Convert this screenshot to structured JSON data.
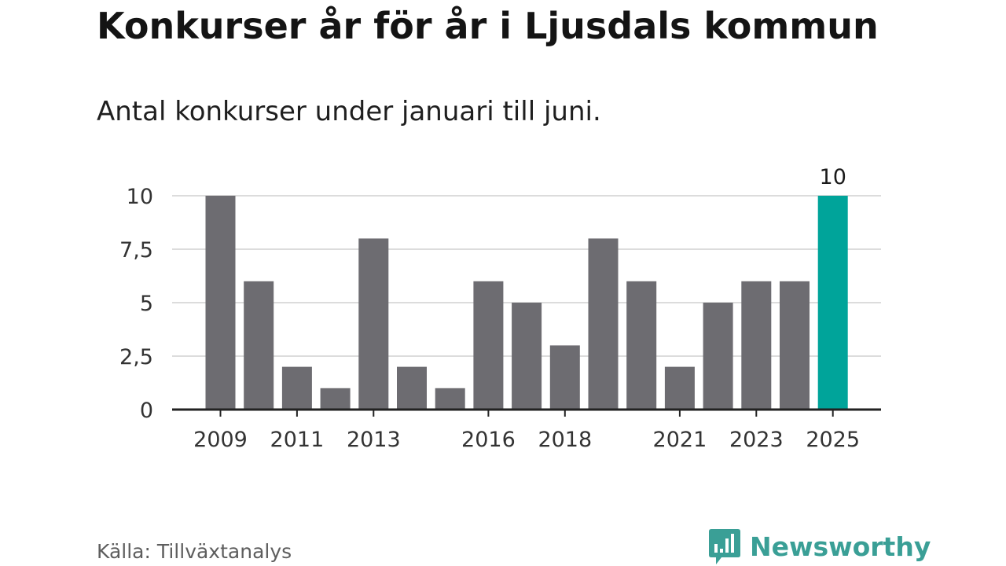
{
  "title": "Konkurser år för år i Ljusdals kommun",
  "subtitle": "Antal konkurser under januari till juni.",
  "source": "Källa: Tillväxtanalys",
  "brand": "Newsworthy",
  "colors": {
    "bar": "#6d6c71",
    "highlight": "#00a49a",
    "grid": "#dcdcdc",
    "axis": "#222222",
    "brand": "#3a9f96"
  },
  "chart_data": {
    "type": "bar",
    "categories": [
      "2009",
      "2010",
      "2011",
      "2012",
      "2013",
      "2014",
      "2015",
      "2016",
      "2017",
      "2018",
      "2019",
      "2020",
      "2021",
      "2022",
      "2023",
      "2024",
      "2025"
    ],
    "values": [
      10,
      6,
      2,
      1,
      8,
      2,
      1,
      6,
      5,
      3,
      8,
      6,
      2,
      5,
      6,
      6,
      10
    ],
    "x_tick_labels": [
      "2009",
      "2011",
      "2013",
      "2016",
      "2018",
      "2021",
      "2023",
      "2025"
    ],
    "y_ticks": [
      0,
      2.5,
      5,
      7.5,
      10
    ],
    "y_tick_labels": [
      "0",
      "2,5",
      "5",
      "7,5",
      "10"
    ],
    "ylim": [
      0,
      10
    ],
    "highlight_category": "2025",
    "data_labels": [
      {
        "category": "2025",
        "text": "10"
      }
    ],
    "grid": true,
    "xlabel": "",
    "ylabel": ""
  }
}
